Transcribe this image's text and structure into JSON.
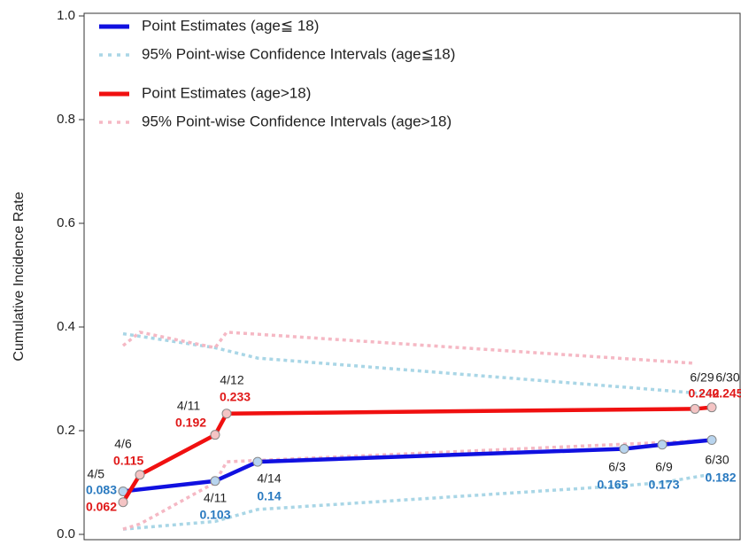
{
  "chart_data": {
    "type": "line",
    "y_label": "Cumulative Incidence Rate",
    "ylim": [
      0,
      1
    ],
    "yticks": [
      {
        "value": 0,
        "label": "0.0"
      },
      0.2,
      0.4,
      0.6,
      0.8,
      {
        "value": 1,
        "label": "1.0"
      }
    ],
    "legend": "upper left",
    "series": [
      {
        "name": "Point Estimates (age≦ 18)",
        "color": "#1010e0",
        "style": "solid",
        "x": [
          "4/5",
          "4/11",
          "4/14",
          "6/3",
          "6/9",
          "6/30"
        ],
        "values": [
          0.083,
          0.103,
          0.14,
          0.165,
          0.173,
          0.182
        ],
        "label_color": "#2a7ac0",
        "marker_color": "#b8d4ee"
      },
      {
        "name": "95% Point-wise Confidence Intervals (age≦18)",
        "color": "#a9d6e6",
        "style": "dotted",
        "x": [
          "4/5",
          "4/11",
          "4/14",
          "6/3",
          "6/9",
          "6/30"
        ],
        "upper": [
          0.387,
          0.36,
          0.34,
          0.284,
          0.278,
          0.27
        ],
        "lower": [
          0.01,
          0.025,
          0.048,
          0.094,
          0.1,
          0.116
        ]
      },
      {
        "name": "Point Estimates (age>18)",
        "color": "#f01010",
        "style": "solid",
        "x": [
          "4/5",
          "4/6",
          "4/11",
          "4/12",
          "6/29",
          "6/30"
        ],
        "values": [
          0.062,
          0.115,
          0.192,
          0.233,
          0.242,
          0.245
        ],
        "label_color": "#e01818",
        "marker_color": "#f4c4c4"
      },
      {
        "name": "95% Point-wise Confidence Intervals (age>18)",
        "color": "#f5b8c4",
        "style": "dotted",
        "x": [
          "4/5",
          "4/6",
          "4/11",
          "4/12",
          "6/29"
        ],
        "upper": [
          0.364,
          0.39,
          0.36,
          0.39,
          0.33
        ],
        "lower": [
          0.01,
          0.02,
          0.1,
          0.14,
          0.18
        ]
      }
    ]
  }
}
